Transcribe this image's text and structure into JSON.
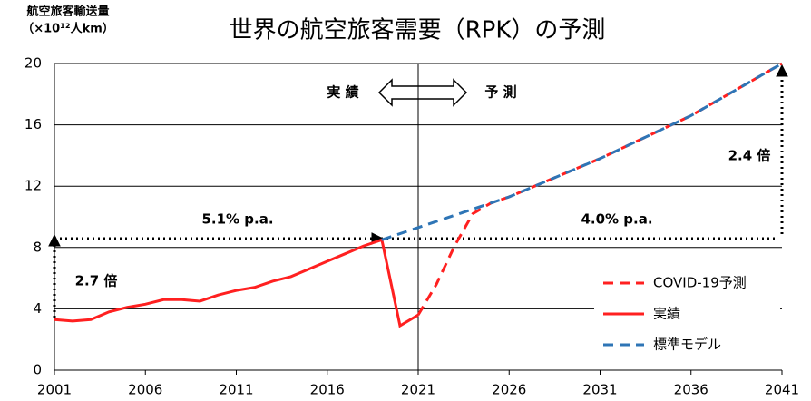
{
  "chart_data": {
    "type": "line",
    "title": "世界の航空旅客需要（RPK）の予測",
    "y_label": [
      "航空旅客輸送量",
      "（×10¹²人km）"
    ],
    "xlim": [
      2001,
      2041
    ],
    "xticks": [
      2001,
      2006,
      2011,
      2016,
      2021,
      2026,
      2031,
      2036,
      2041
    ],
    "ylim": [
      0,
      20
    ],
    "yticks": [
      0,
      4,
      8,
      12,
      16,
      20
    ],
    "grid": true,
    "legend": "lower right",
    "annotations": [
      "実 績",
      "予 測",
      "5.1% p.a.",
      "4.0% p.a.",
      "2.7 倍",
      "2.4 倍"
    ],
    "series": [
      {
        "name": "COVID-19予測",
        "color": "#ff2020",
        "style": "dashed",
        "x": [
          2021,
          2022,
          2023,
          2024,
          2025,
          2026,
          2031,
          2036,
          2041
        ],
        "values": [
          3.6,
          5.6,
          8.1,
          10.2,
          10.9,
          11.3,
          13.8,
          16.6,
          20.0
        ]
      },
      {
        "name": "実績",
        "color": "#ff2020",
        "style": "solid",
        "x": [
          2001,
          2002,
          2003,
          2004,
          2005,
          2006,
          2007,
          2008,
          2009,
          2010,
          2011,
          2012,
          2013,
          2014,
          2015,
          2016,
          2017,
          2018,
          2019,
          2020,
          2021
        ],
        "values": [
          3.3,
          3.2,
          3.3,
          3.8,
          4.1,
          4.3,
          4.6,
          4.6,
          4.5,
          4.9,
          5.2,
          5.4,
          5.8,
          6.1,
          6.6,
          7.1,
          7.6,
          8.1,
          8.5,
          2.9,
          3.6
        ]
      },
      {
        "name": "標準モデル",
        "color": "#2e75b6",
        "style": "dashed",
        "x": [
          2019,
          2021,
          2026,
          2031,
          2036,
          2041
        ],
        "values": [
          8.5,
          9.3,
          11.3,
          13.8,
          16.6,
          20.0
        ]
      }
    ]
  }
}
